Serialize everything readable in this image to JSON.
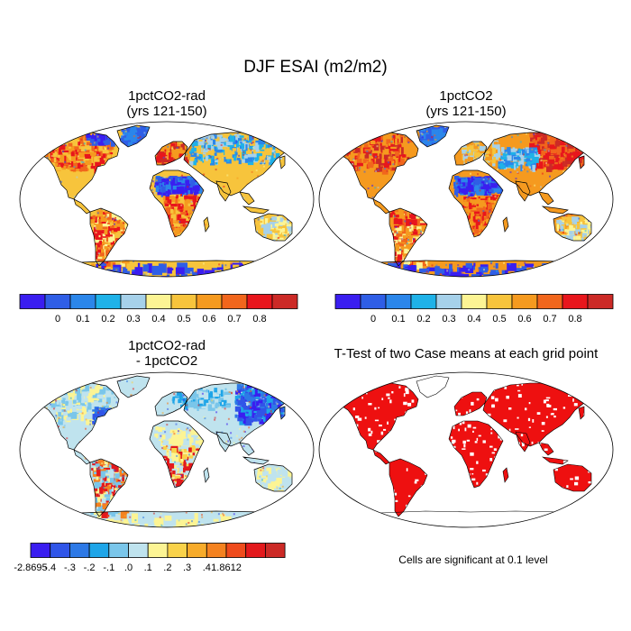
{
  "figure": {
    "title": "DJF ESAI (m2/m2)"
  },
  "panels": [
    {
      "id": "p1",
      "title_line1": "1pctCO2-rad",
      "title_line2": "(yrs 121-150)"
    },
    {
      "id": "p2",
      "title_line1": "1pctCO2",
      "title_line2": "(yrs 121-150)"
    },
    {
      "id": "p3",
      "title_line1": "1pctCO2-rad",
      "title_line2": "- 1pctCO2"
    },
    {
      "id": "p4",
      "title_line1": "T-Test of two Case means at each grid point"
    }
  ],
  "colorbars": {
    "abs": {
      "colors": [
        "#3a1ef0",
        "#2f5ee6",
        "#2b86ea",
        "#1fb2e8",
        "#a6d1ea",
        "#fcf494",
        "#f7c43c",
        "#f59a1f",
        "#f1661c",
        "#e8161c",
        "#cc2a26"
      ],
      "labels": [
        "0",
        "0.1",
        "0.2",
        "0.3",
        "0.4",
        "0.5",
        "0.6",
        "0.7",
        "0.8"
      ]
    },
    "diff": {
      "colors": [
        "#3a1ef0",
        "#3055e8",
        "#2d79e6",
        "#1ea5e8",
        "#7ac6ea",
        "#bfe3ee",
        "#fcf494",
        "#f9d24a",
        "#f7ab2a",
        "#f48220",
        "#ef4b1c",
        "#e3191c",
        "#cc2a26"
      ],
      "labels": [
        "-2.8695",
        "-.4",
        "-.3",
        "-.2",
        "-.1",
        ".0",
        ".1",
        ".2",
        ".3",
        ".4",
        "1.8612"
      ]
    }
  },
  "significance_note": "Cells are significant at 0.1 level"
}
